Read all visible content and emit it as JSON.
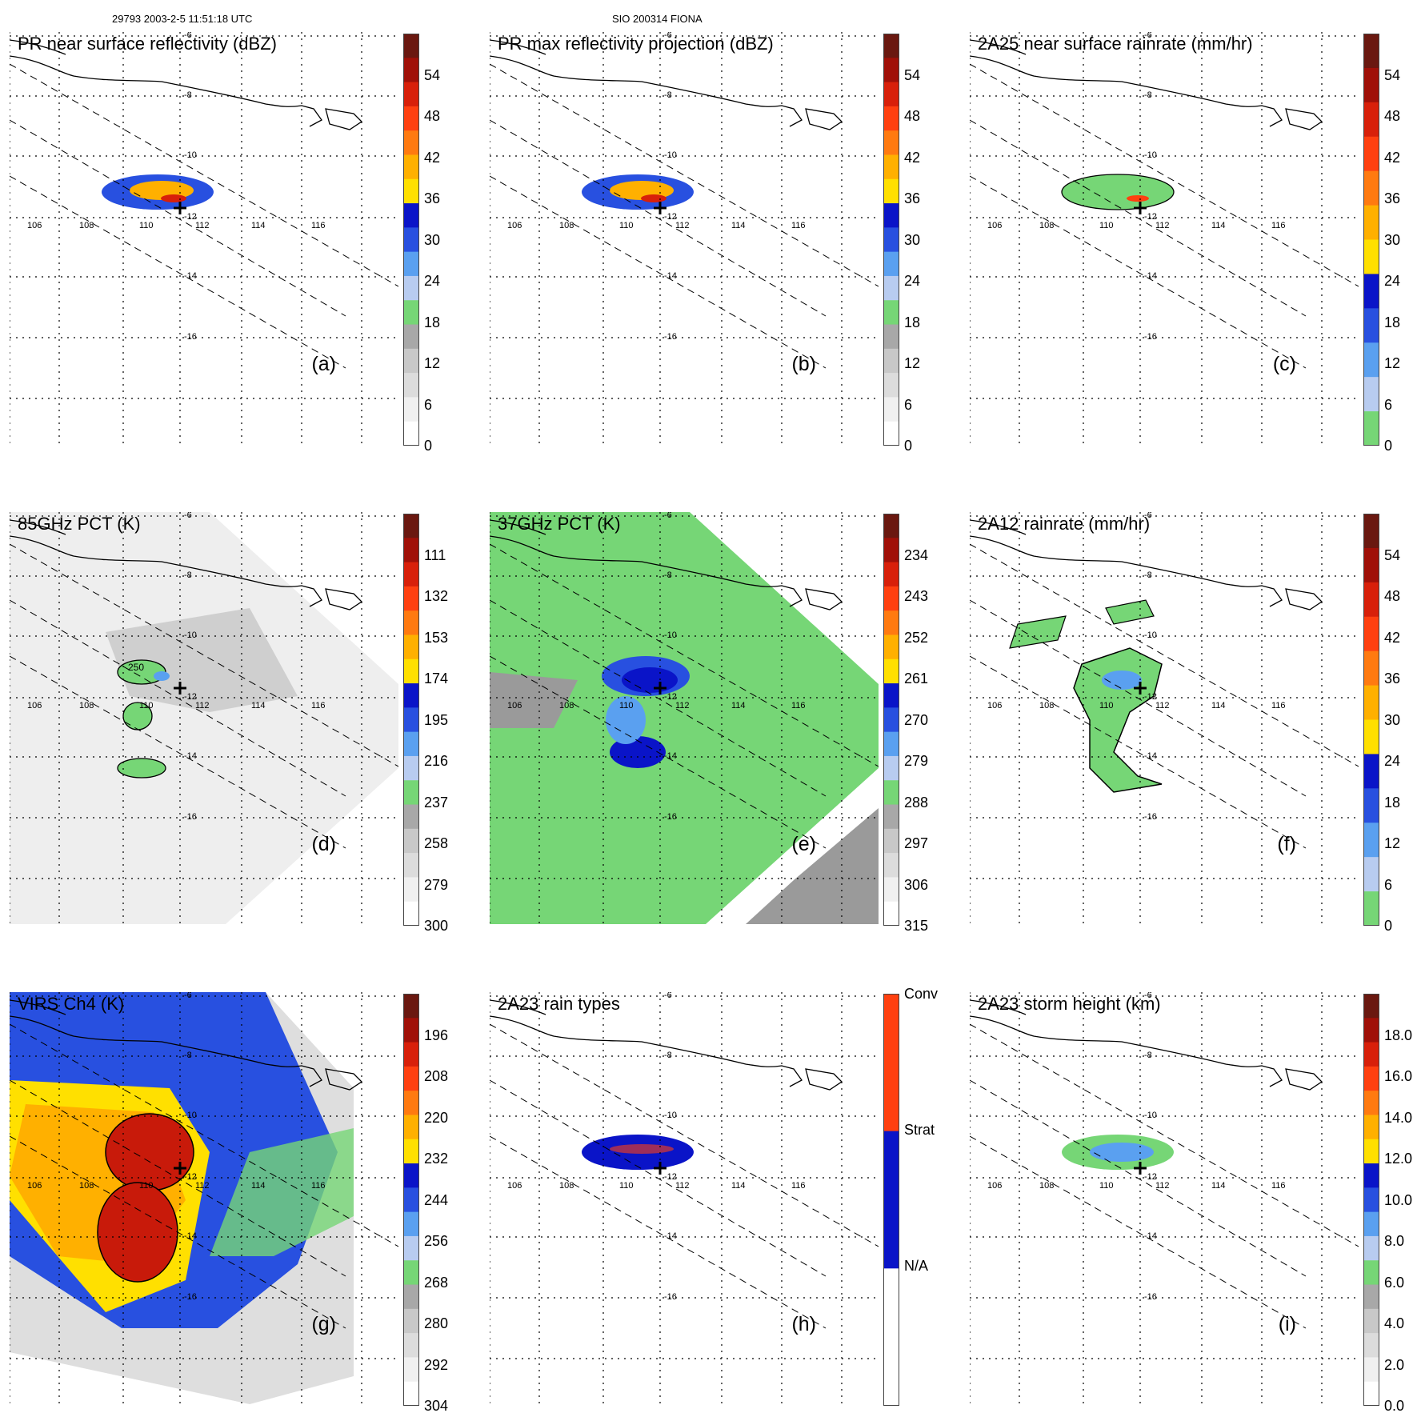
{
  "header": {
    "left": "29793 2003-2-5 11:51:18 UTC",
    "center": "SIO 200314 FIONA"
  },
  "map": {
    "lon_ticks": [
      "106",
      "108",
      "110",
      "112",
      "114",
      "116"
    ],
    "lat_ticks": [
      "-6",
      "-8",
      "-10",
      "-12",
      "-14",
      "-16"
    ]
  },
  "chart_data": [
    {
      "id": "a",
      "type": "heatmap",
      "title": "PR near surface reflectivity (dBZ)",
      "label": "(a)",
      "colorbar": [
        "54",
        "48",
        "42",
        "36",
        "30",
        "24",
        "18",
        "12",
        "6",
        "0"
      ]
    },
    {
      "id": "b",
      "type": "heatmap",
      "title": "PR max reflectivity projection (dBZ)",
      "label": "(b)",
      "colorbar": [
        "54",
        "48",
        "42",
        "36",
        "30",
        "24",
        "18",
        "12",
        "6",
        "0"
      ]
    },
    {
      "id": "c",
      "type": "heatmap",
      "title": "2A25 near surface rainrate (mm/hr)",
      "label": "(c)",
      "colorbar": [
        "54",
        "48",
        "42",
        "36",
        "30",
        "24",
        "18",
        "12",
        "6",
        "0"
      ]
    },
    {
      "id": "d",
      "type": "heatmap",
      "title": "85GHz PCT (K)",
      "label": "(d)",
      "colorbar": [
        "111",
        "132",
        "153",
        "174",
        "195",
        "216",
        "237",
        "258",
        "279",
        "300"
      ],
      "contour_label": "250"
    },
    {
      "id": "e",
      "type": "heatmap",
      "title": "37GHz PCT (K)",
      "label": "(e)",
      "colorbar": [
        "234",
        "243",
        "252",
        "261",
        "270",
        "279",
        "288",
        "297",
        "306",
        "315"
      ]
    },
    {
      "id": "f",
      "type": "heatmap",
      "title": "2A12 rainrate (mm/hr)",
      "label": "(f)",
      "colorbar": [
        "54",
        "48",
        "42",
        "36",
        "30",
        "24",
        "18",
        "12",
        "6",
        "0"
      ]
    },
    {
      "id": "g",
      "type": "heatmap",
      "title": "VIRS Ch4 (K)",
      "label": "(g)",
      "colorbar": [
        "196",
        "208",
        "220",
        "232",
        "244",
        "256",
        "268",
        "280",
        "292",
        "304"
      ]
    },
    {
      "id": "h",
      "type": "heatmap",
      "title": "2A23 rain types",
      "label": "(h)",
      "colorbar_categories": [
        "Conv",
        "Strat",
        "N/A"
      ]
    },
    {
      "id": "i",
      "type": "heatmap",
      "title": "2A23 storm height (km)",
      "label": "(i)",
      "colorbar": [
        "18.0",
        "16.0",
        "14.0",
        "12.0",
        "10.0",
        "8.0",
        "6.0",
        "4.0",
        "2.0",
        "0.0"
      ]
    }
  ],
  "colors": {
    "scale_rain": [
      "#a6e6a6",
      "#a6e6a6",
      "#b8ccf0",
      "#5aa0f0",
      "#2850e0",
      "#0a14c8",
      "#ffe000",
      "#ffb000",
      "#ff7a10",
      "#ff4010",
      "#d8200a",
      "#a01008",
      "#6a1810"
    ],
    "scale_gray": [
      "#ffffff",
      "#f0f0f0",
      "#dcdcdc",
      "#c8c8c8",
      "#a8a8a8",
      "#76d676",
      "#b8ccf0",
      "#5aa0f0",
      "#2850e0",
      "#0a14c8",
      "#ffe000",
      "#ffb000",
      "#ff7a10",
      "#ff4010",
      "#d8200a",
      "#a01008",
      "#6a1810"
    ],
    "scale_rate": [
      "#76d676",
      "#b8ccf0",
      "#5aa0f0",
      "#2850e0",
      "#0a14c8",
      "#ffe000",
      "#ffb000",
      "#ff7a10",
      "#ff4010",
      "#d8200a",
      "#a01008",
      "#6a1810"
    ],
    "types": [
      "#ff4010",
      "#0a14c8",
      "#ffffff"
    ]
  }
}
